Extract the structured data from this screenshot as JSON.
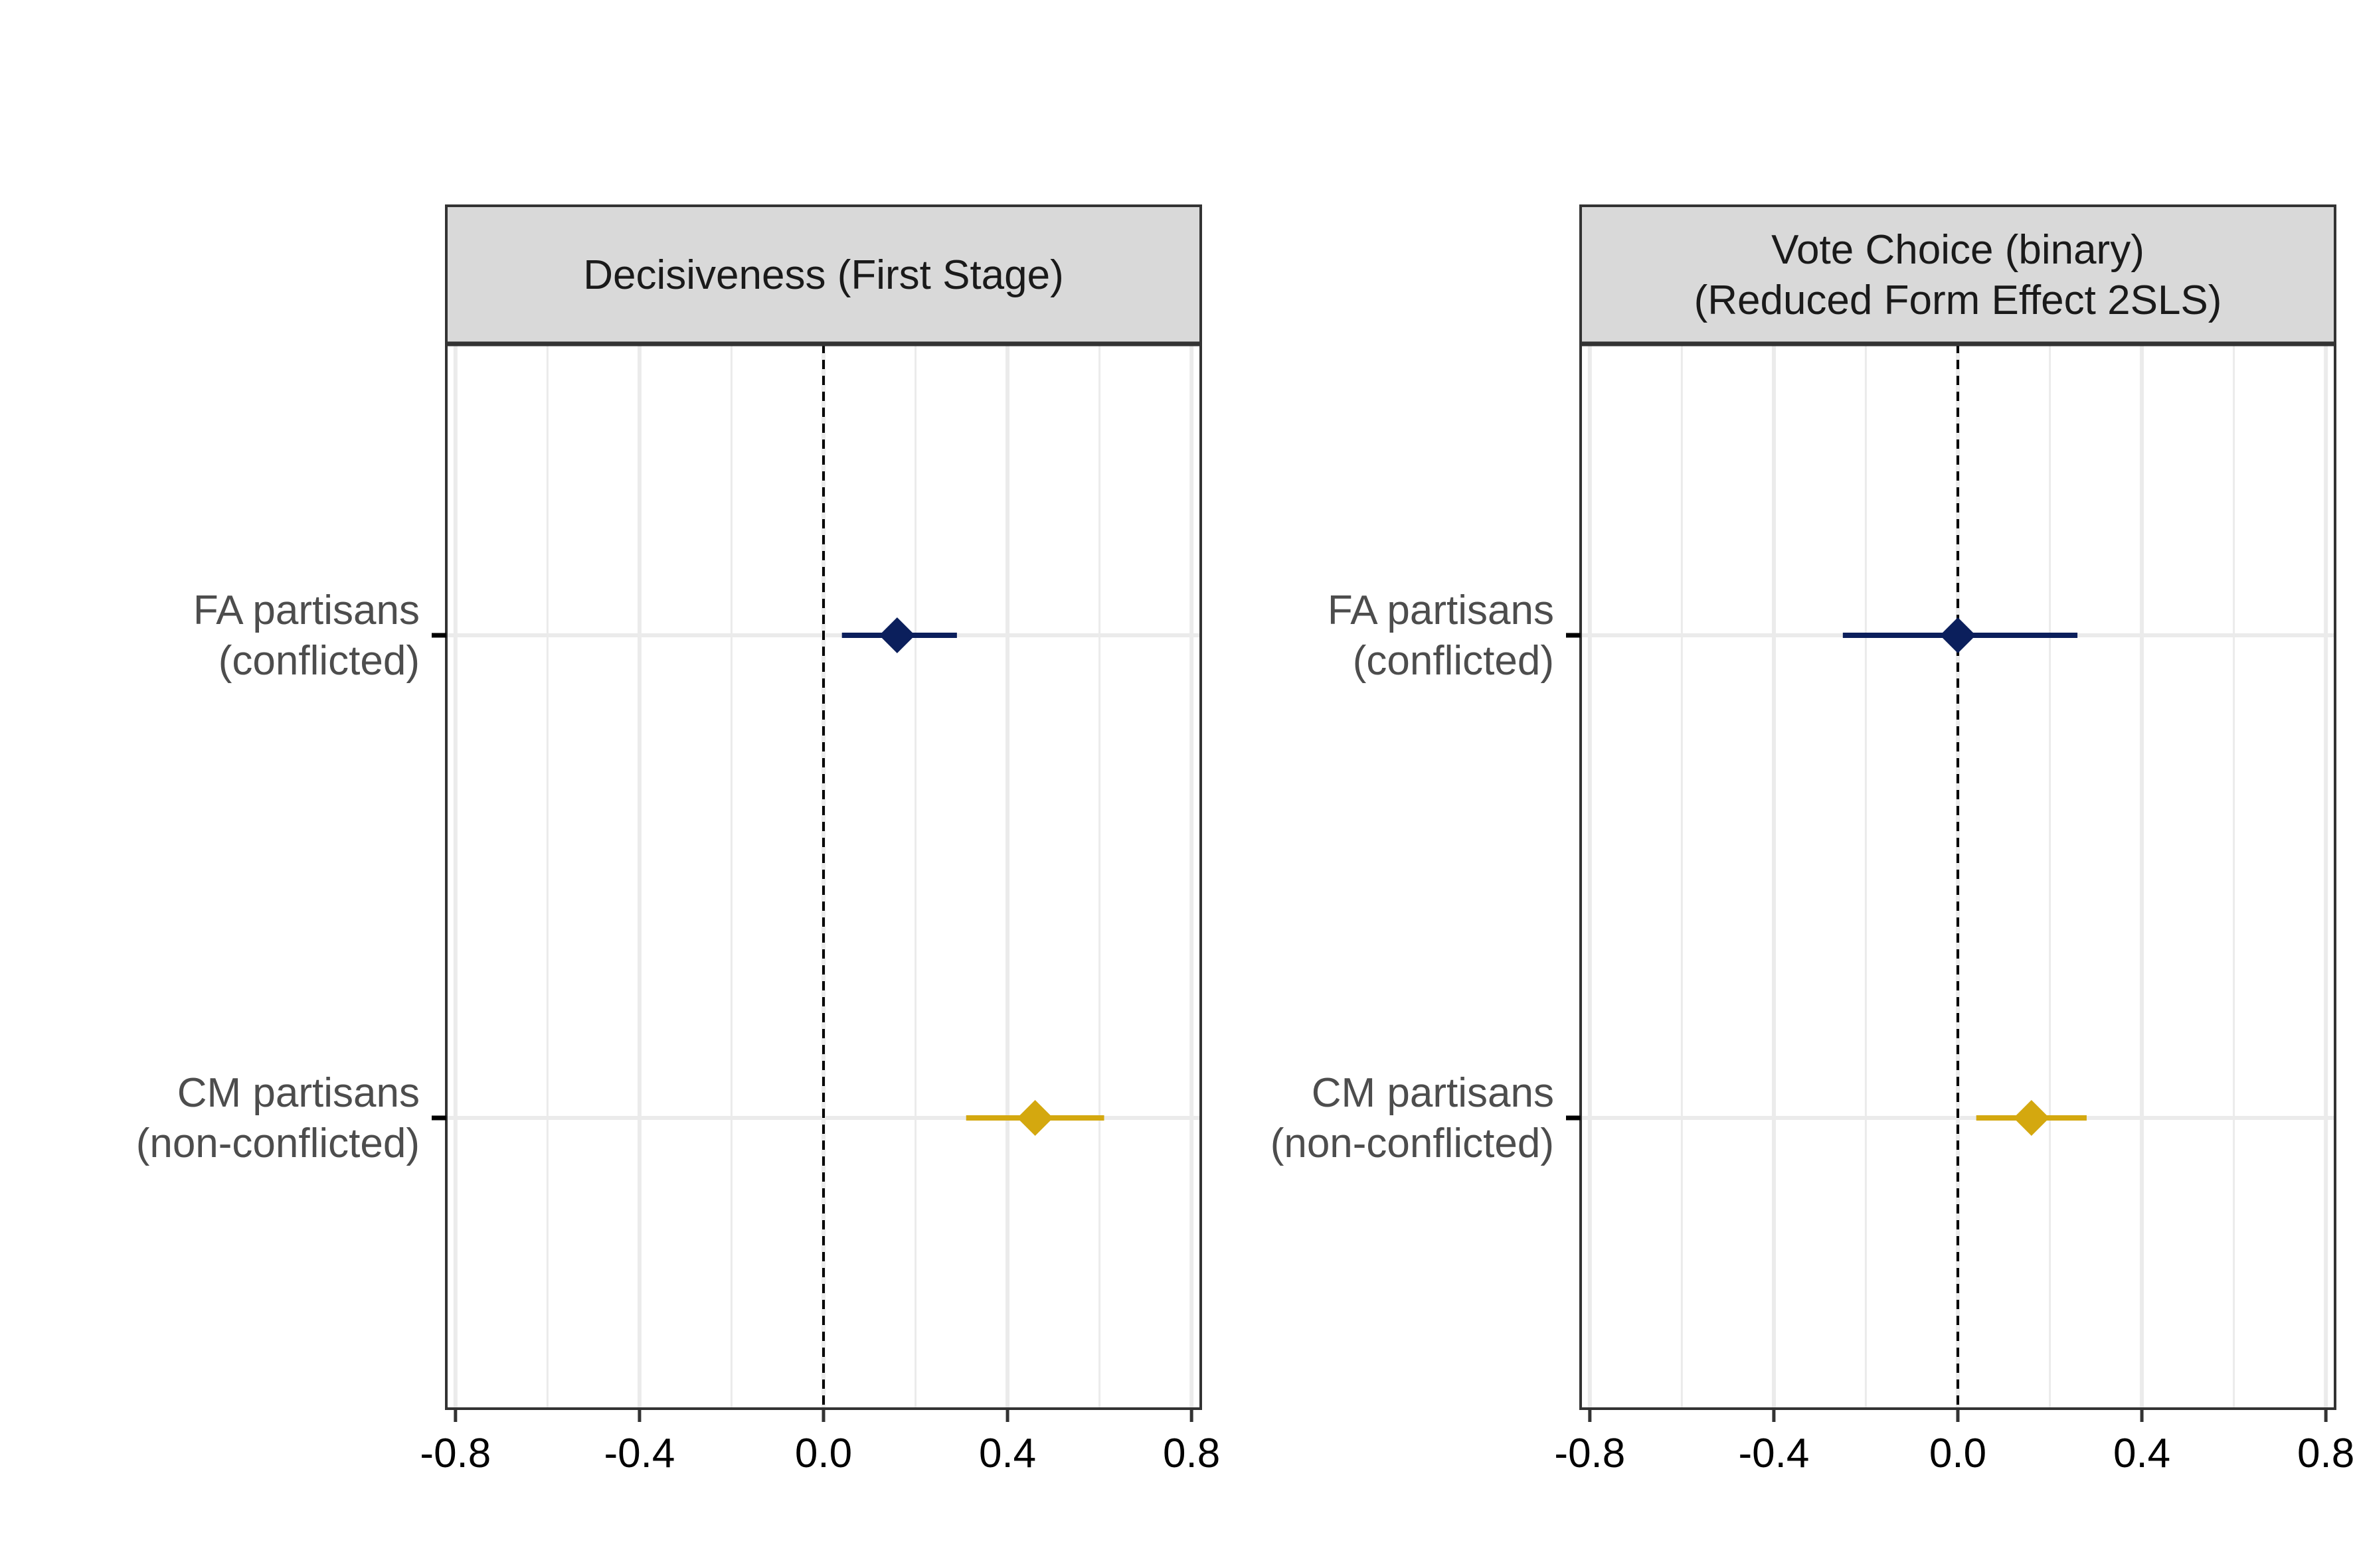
{
  "chart_data": [
    {
      "type": "scatter",
      "title": "Decisiveness (First Stage)",
      "categories": [
        "FA partisans\n(conflicted)",
        "CM partisans\n(non-conflicted)"
      ],
      "xlim": [
        -0.82,
        0.82
      ],
      "xticks": [
        "-0.8",
        "-0.4",
        "0.0",
        "0.4",
        "0.8"
      ],
      "grid": true,
      "reference_line": 0,
      "series": [
        {
          "category": "FA partisans\n(conflicted)",
          "estimate": 0.16,
          "ci": [
            0.04,
            0.29
          ],
          "color": "#0b1f5c"
        },
        {
          "category": "CM partisans\n(non-conflicted)",
          "estimate": 0.46,
          "ci": [
            0.31,
            0.61
          ],
          "color": "#d4a80f"
        }
      ]
    },
    {
      "type": "scatter",
      "title": "Vote Choice (binary)\n(Reduced Form Effect 2SLS)",
      "categories": [
        "FA partisans\n(conflicted)",
        "CM partisans\n(non-conflicted)"
      ],
      "xlim": [
        -0.82,
        0.82
      ],
      "xticks": [
        "-0.8",
        "-0.4",
        "0.0",
        "0.4",
        "0.8"
      ],
      "grid": true,
      "reference_line": 0,
      "series": [
        {
          "category": "FA partisans\n(conflicted)",
          "estimate": 0.0,
          "ci": [
            -0.25,
            0.26
          ],
          "color": "#0b1f5c"
        },
        {
          "category": "CM partisans\n(non-conflicted)",
          "estimate": 0.16,
          "ci": [
            0.04,
            0.28
          ],
          "color": "#d4a80f"
        }
      ]
    }
  ]
}
